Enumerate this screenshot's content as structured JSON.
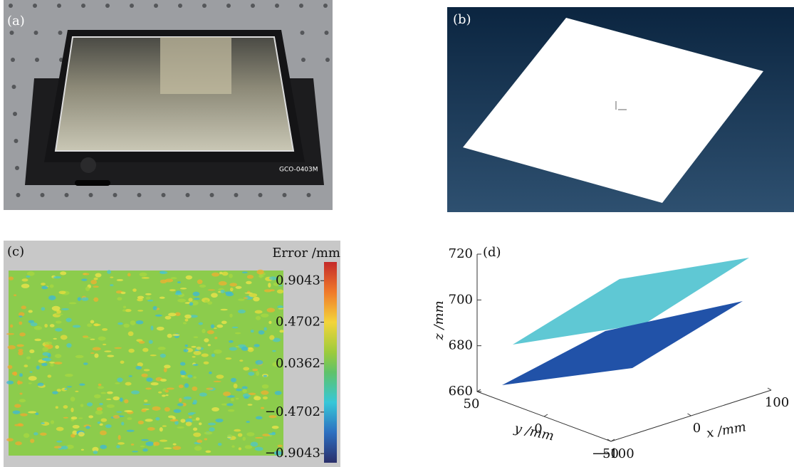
{
  "panel_a": {
    "label": "(a)",
    "device_text": "GCO-0403M"
  },
  "panel_b": {
    "label": "(b)"
  },
  "panel_c": {
    "label": "(c)",
    "colorbar_title": "Error /mm",
    "clim": [
      -1.0,
      1.1
    ],
    "colorbar_ticks": [
      0.9043,
      0.4702,
      0.0362,
      {
        "value": -0.4702,
        "label": "−0.4702"
      },
      {
        "value": -0.9043,
        "label": "−0.9043"
      }
    ]
  },
  "panel_d": {
    "label": "(d)",
    "z_label": "z /mm",
    "y_label": "y /mm",
    "x_label": "x /mm",
    "zlim": [
      660,
      720
    ],
    "zticks": [
      660,
      680,
      700,
      720
    ],
    "ylim": [
      -50,
      50
    ],
    "yticks": [
      50,
      0,
      {
        "value": -50,
        "label": "−50"
      }
    ],
    "xlim": [
      -100,
      100
    ],
    "xticks": [
      {
        "value": -100,
        "label": "−100"
      },
      0,
      100
    ]
  }
}
